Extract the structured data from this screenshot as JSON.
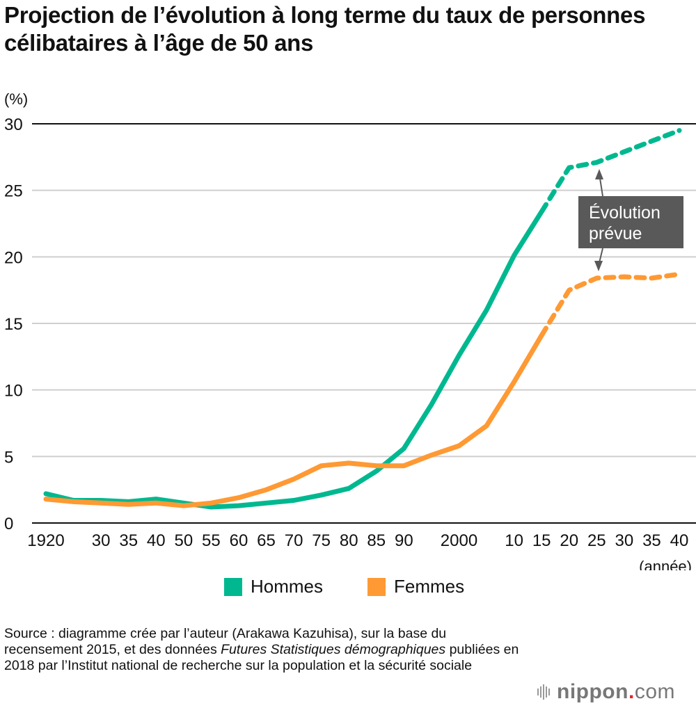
{
  "title": "Projection de l’évolution à long terme du taux de personnes célibataires à l’âge de 50 ans",
  "chart_data": {
    "type": "line",
    "title": "Projection de l’évolution à long terme du taux de personnes célibataires à l’âge de 50 ans",
    "ylabel": "(%)",
    "xlabel": "(année)",
    "ylim": [
      0,
      30
    ],
    "yticks": [
      "0",
      "5",
      "10",
      "15",
      "20",
      "25",
      "30"
    ],
    "grid": true,
    "x": [
      1920,
      1925,
      1930,
      1935,
      1940,
      1950,
      1955,
      1960,
      1965,
      1970,
      1975,
      1980,
      1985,
      1990,
      1995,
      2000,
      2005,
      2010,
      2015,
      2020,
      2025,
      2030,
      2035,
      2040
    ],
    "x_tick_labels": [
      "1920",
      "",
      "30",
      "35",
      "40",
      "50",
      "55",
      "60",
      "65",
      "70",
      "75",
      "80",
      "85",
      "90",
      "",
      "2000",
      "",
      "10",
      "15",
      "20",
      "25",
      "30",
      "35",
      "40"
    ],
    "projection_start_year": 2015,
    "series": [
      {
        "name": "Hommes",
        "color": "#00b890",
        "values": [
          2.2,
          1.7,
          1.7,
          1.6,
          1.8,
          1.5,
          1.2,
          1.3,
          1.5,
          1.7,
          2.1,
          2.6,
          3.9,
          5.6,
          8.9,
          12.6,
          16.0,
          20.1,
          23.4,
          26.7,
          27.1,
          27.9,
          28.7,
          29.5
        ]
      },
      {
        "name": "Femmes",
        "color": "#ff9933",
        "values": [
          1.8,
          1.6,
          1.5,
          1.4,
          1.5,
          1.3,
          1.5,
          1.9,
          2.5,
          3.3,
          4.3,
          4.5,
          4.3,
          4.3,
          5.1,
          5.8,
          7.3,
          10.6,
          14.1,
          17.5,
          18.4,
          18.5,
          18.4,
          18.7
        ]
      }
    ],
    "annotation": {
      "text_line1": "Évolution",
      "text_line2": "prévue",
      "box_color": "#595959"
    },
    "legend": {
      "position": "bottom-center",
      "entries": [
        "Hommes",
        "Femmes"
      ]
    }
  },
  "source": {
    "part1": "Source : diagramme crée par l’auteur (Arakawa Kazuhisa), sur la base du recensement 2015, et des données ",
    "italic": "Futures Statistiques démographiques",
    "part2": " publiées en 2018 par l’Institut national de recherche sur la population et la sécurité sociale"
  },
  "brand": {
    "name": "nippon",
    "dot": ".",
    "tld": "com",
    "accent": "#e62128"
  }
}
